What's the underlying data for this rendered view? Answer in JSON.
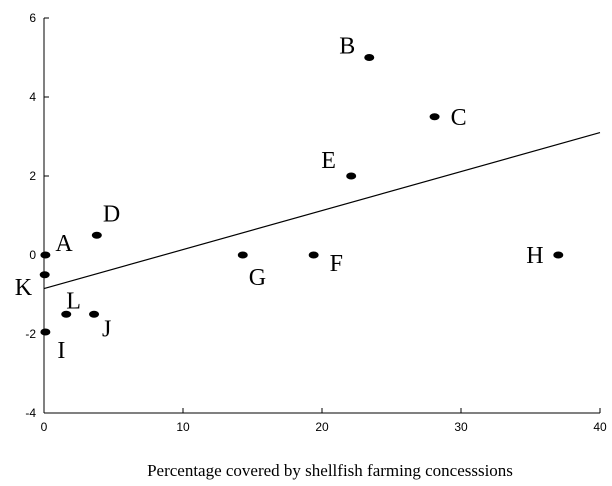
{
  "chart_data": {
    "type": "scatter",
    "title": "",
    "xlabel": "Percentage covered by shellfish farming concesssions",
    "ylabel": "",
    "xlim": [
      0,
      40
    ],
    "ylim": [
      -4,
      6
    ],
    "x_ticks": [
      0,
      10,
      20,
      30,
      40
    ],
    "y_ticks": [
      6,
      4,
      2,
      0,
      -2,
      -4
    ],
    "x_tick_labels": [
      "0",
      "10",
      "20",
      "30",
      "40"
    ],
    "y_tick_labels": [
      "6",
      "4",
      "2",
      "0",
      "-2",
      "-4"
    ],
    "grid": false,
    "legend": "none",
    "points": [
      {
        "label": "A",
        "x": 0.1,
        "y": 0.0
      },
      {
        "label": "B",
        "x": 23.4,
        "y": 5.0
      },
      {
        "label": "C",
        "x": 28.1,
        "y": 3.5
      },
      {
        "label": "D",
        "x": 3.8,
        "y": 0.5
      },
      {
        "label": "E",
        "x": 22.1,
        "y": 2.0
      },
      {
        "label": "F",
        "x": 19.4,
        "y": 0.0
      },
      {
        "label": "G",
        "x": 14.3,
        "y": 0.0
      },
      {
        "label": "H",
        "x": 37.0,
        "y": 0.0
      },
      {
        "label": "I",
        "x": 0.1,
        "y": -1.95
      },
      {
        "label": "J",
        "x": 3.6,
        "y": -1.5
      },
      {
        "label": "K",
        "x": 0.05,
        "y": -0.5
      },
      {
        "label": "L",
        "x": 1.6,
        "y": -1.5
      }
    ],
    "trendline": {
      "x": [
        0,
        40
      ],
      "y": [
        -0.85,
        3.1
      ]
    }
  }
}
